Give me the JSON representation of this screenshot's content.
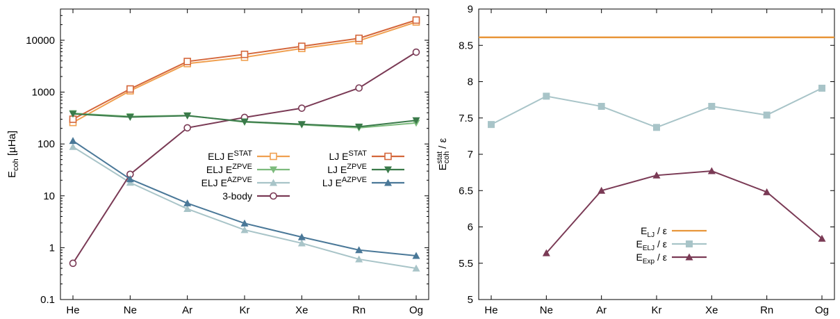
{
  "chart_data": [
    {
      "type": "line",
      "title": "",
      "ylabel": "E",
      "ylabel_sub": "coh",
      "ylabel_unit": " [µHa]",
      "yscale": "log",
      "ylim": [
        0.1,
        40000
      ],
      "yticks": [
        {
          "v": 0.1,
          "t": "0.1"
        },
        {
          "v": 1,
          "t": "1"
        },
        {
          "v": 10,
          "t": "10"
        },
        {
          "v": 100,
          "t": "100"
        },
        {
          "v": 1000,
          "t": "1000"
        },
        {
          "v": 10000,
          "t": "10000"
        }
      ],
      "categories": [
        "He",
        "Ne",
        "Ar",
        "Kr",
        "Xe",
        "Rn",
        "Og"
      ],
      "grid": false,
      "legend_position": "center-right",
      "series": [
        {
          "label": "ELJ E",
          "sup": "STAT",
          "color": "#f0a050",
          "marker": "square-open",
          "values": [
            260,
            1060,
            3550,
            4700,
            6950,
            9800,
            22500
          ]
        },
        {
          "label": "ELJ E",
          "sup": "ZPVE",
          "color": "#7dbb7d",
          "marker": "triangle-down",
          "values": [
            390,
            340,
            355,
            265,
            235,
            205,
            255
          ]
        },
        {
          "label": "ELJ E",
          "sup": "AZPVE",
          "color": "#a8c4c8",
          "marker": "triangle-up",
          "values": [
            88,
            18,
            5.6,
            2.2,
            1.22,
            0.6,
            0.4
          ]
        },
        {
          "label": "3-body",
          "sup": "",
          "color": "#7a3a55",
          "marker": "circle-open",
          "values": [
            0.5,
            26,
            205,
            325,
            490,
            1200,
            5900
          ]
        },
        {
          "label": "LJ E",
          "sup": "STAT",
          "color": "#d4663a",
          "marker": "square-open",
          "values": [
            300,
            1150,
            3900,
            5350,
            7650,
            10900,
            24500
          ]
        },
        {
          "label": "LJ E",
          "sup": "ZPVE",
          "color": "#3a7a4a",
          "marker": "triangle-down",
          "values": [
            380,
            330,
            350,
            270,
            240,
            215,
            285
          ]
        },
        {
          "label": "LJ E",
          "sup": "AZPVE",
          "color": "#4a7898",
          "marker": "triangle-up",
          "values": [
            115,
            21,
            7.2,
            2.95,
            1.6,
            0.9,
            0.7
          ]
        }
      ]
    },
    {
      "type": "line",
      "title": "",
      "ylabel": "E",
      "ylabel_sub": "coh",
      "ylabel_sup": "stat",
      "ylabel_rest": " / ε",
      "ylim": [
        5,
        9
      ],
      "yticks": [
        {
          "v": 5,
          "t": "5"
        },
        {
          "v": 5.5,
          "t": "5.5"
        },
        {
          "v": 6,
          "t": "6"
        },
        {
          "v": 6.5,
          "t": "6.5"
        },
        {
          "v": 7,
          "t": "7"
        },
        {
          "v": 7.5,
          "t": "7.5"
        },
        {
          "v": 8,
          "t": "8"
        },
        {
          "v": 8.5,
          "t": "8.5"
        },
        {
          "v": 9,
          "t": "9"
        }
      ],
      "categories": [
        "He",
        "Ne",
        "Ar",
        "Kr",
        "Xe",
        "Rn",
        "Og"
      ],
      "grid": false,
      "legend_position": "bottom-center",
      "series": [
        {
          "label": "E",
          "sub": "LJ",
          "rest": " / ε",
          "color": "#e8963a",
          "marker": "none",
          "values": [
            8.61,
            8.61,
            8.61,
            8.61,
            8.61,
            8.61,
            8.61
          ],
          "span": "full"
        },
        {
          "label": "E",
          "sub": "ELJ",
          "rest": " / ε",
          "color": "#a8c4c8",
          "marker": "square",
          "values": [
            7.41,
            7.8,
            7.66,
            7.37,
            7.66,
            7.54,
            7.91
          ]
        },
        {
          "label": "E",
          "sub": "Exp",
          "rest": " / ε",
          "color": "#7a3a55",
          "marker": "triangle-up",
          "values": [
            null,
            5.64,
            6.5,
            6.71,
            6.77,
            6.48,
            5.84
          ]
        }
      ]
    }
  ]
}
